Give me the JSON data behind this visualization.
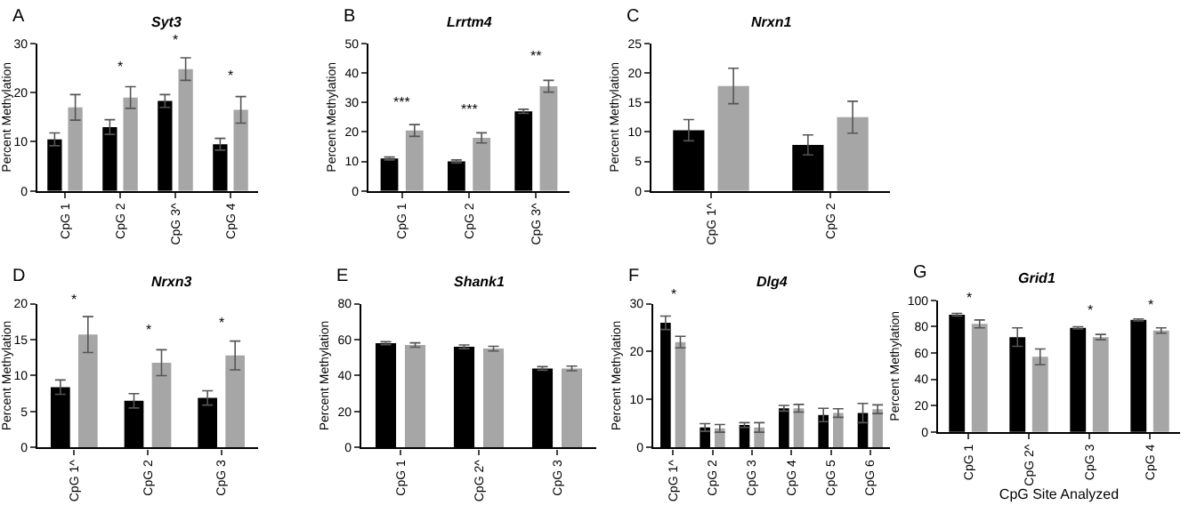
{
  "chart_data": [
    {
      "type": "bar",
      "title": "Syt3",
      "ylabel": "Percent Methylation",
      "categories": [
        "CpG 1",
        "CpG 2",
        "CpG 3^",
        "CpG 4"
      ],
      "series": [
        {
          "color": "#000000",
          "values": [
            10.5,
            13,
            18.3,
            9.5
          ],
          "errors": [
            1.3,
            1.5,
            1.3,
            1.2
          ]
        },
        {
          "color": "#a6a6a6",
          "values": [
            17,
            19,
            24.8,
            16.5
          ],
          "errors": [
            2.6,
            2.2,
            2.3,
            2.7
          ]
        }
      ],
      "ylim": [
        0,
        30
      ],
      "yticks": [
        0,
        10,
        20,
        30
      ],
      "annotations": [
        "A",
        "*",
        "*",
        "*"
      ]
    },
    {
      "type": "bar",
      "title": "Lrrtm4",
      "ylabel": "Percent Methylation",
      "categories": [
        "CpG 1",
        "CpG 2",
        "CpG 3^"
      ],
      "series": [
        {
          "color": "#000000",
          "values": [
            11,
            10,
            27
          ],
          "errors": [
            0.5,
            0.5,
            0.7
          ]
        },
        {
          "color": "#a6a6a6",
          "values": [
            20.5,
            18,
            35.5
          ],
          "errors": [
            2,
            1.7,
            2
          ]
        }
      ],
      "ylim": [
        0,
        50
      ],
      "yticks": [
        0,
        10,
        20,
        30,
        40,
        50
      ],
      "annotations": [
        "B",
        "***",
        "***",
        "**"
      ]
    },
    {
      "type": "bar",
      "title": "Nrxn1",
      "ylabel": "Percent Methylation",
      "categories": [
        "CpG 1^",
        "CpG 2"
      ],
      "series": [
        {
          "color": "#000000",
          "values": [
            10.3,
            7.8
          ],
          "errors": [
            1.8,
            1.7
          ]
        },
        {
          "color": "#a6a6a6",
          "values": [
            17.8,
            12.5
          ],
          "errors": [
            3,
            2.7
          ]
        }
      ],
      "ylim": [
        0,
        25
      ],
      "yticks": [
        0,
        5,
        10,
        15,
        20,
        25
      ],
      "annotations": [
        "C"
      ]
    },
    {
      "type": "bar",
      "title": "Nrxn3",
      "ylabel": "Percent Methylation",
      "categories": [
        "CpG 1^",
        "CpG 2",
        "CpG 3"
      ],
      "series": [
        {
          "color": "#000000",
          "values": [
            8.4,
            6.5,
            6.9
          ],
          "errors": [
            1,
            1,
            1
          ]
        },
        {
          "color": "#a6a6a6",
          "values": [
            15.7,
            11.8,
            12.8
          ],
          "errors": [
            2.5,
            1.8,
            2
          ]
        }
      ],
      "ylim": [
        0,
        20
      ],
      "yticks": [
        0,
        5,
        10,
        15,
        20
      ],
      "annotations": [
        "D",
        "*",
        "*",
        "*"
      ]
    },
    {
      "type": "bar",
      "title": "Shank1",
      "ylabel": "Percent Methylation",
      "categories": [
        "CpG 1",
        "CpG 2^",
        "CpG 3"
      ],
      "series": [
        {
          "color": "#000000",
          "values": [
            58,
            56,
            44
          ],
          "errors": [
            0.8,
            1,
            1
          ]
        },
        {
          "color": "#a6a6a6",
          "values": [
            57,
            55,
            44
          ],
          "errors": [
            1.2,
            1.3,
            1.3
          ]
        }
      ],
      "ylim": [
        0,
        80
      ],
      "yticks": [
        0,
        20,
        40,
        60,
        80
      ],
      "annotations": [
        "E"
      ]
    },
    {
      "type": "bar",
      "title": "Dlg4",
      "ylabel": "Percent Methylation",
      "categories": [
        "CpG 1^",
        "CpG 2",
        "CpG 3",
        "CpG 4",
        "CpG 5",
        "CpG 6"
      ],
      "series": [
        {
          "color": "#000000",
          "values": [
            26,
            4.2,
            4.7,
            8.2,
            6.8,
            7.2
          ],
          "errors": [
            1.4,
            0.8,
            0.5,
            0.6,
            1.4,
            2
          ]
        },
        {
          "color": "#a6a6a6",
          "values": [
            22,
            4,
            4.2,
            8.2,
            7.2,
            8
          ],
          "errors": [
            1.2,
            0.8,
            1,
            0.8,
            0.9,
            0.9
          ]
        }
      ],
      "ylim": [
        0,
        30
      ],
      "yticks": [
        0,
        10,
        20,
        30
      ],
      "annotations": [
        "F",
        "*"
      ]
    },
    {
      "type": "bar",
      "title": "Grid1",
      "ylabel": "Percent Methylation",
      "xlabel": "CpG Site Analyzed",
      "categories": [
        "CpG 1",
        "CpG 2^",
        "CpG 3",
        "CpG 4"
      ],
      "series": [
        {
          "color": "#000000",
          "values": [
            89,
            72,
            79,
            85
          ],
          "errors": [
            1,
            7,
            0.8,
            0.8
          ]
        },
        {
          "color": "#a6a6a6",
          "values": [
            82,
            57,
            72,
            77
          ],
          "errors": [
            3,
            6,
            2,
            2
          ]
        }
      ],
      "ylim": [
        0,
        100
      ],
      "yticks": [
        0,
        20,
        40,
        60,
        80,
        100
      ],
      "annotations": [
        "G",
        "*",
        "*",
        "*"
      ]
    }
  ]
}
